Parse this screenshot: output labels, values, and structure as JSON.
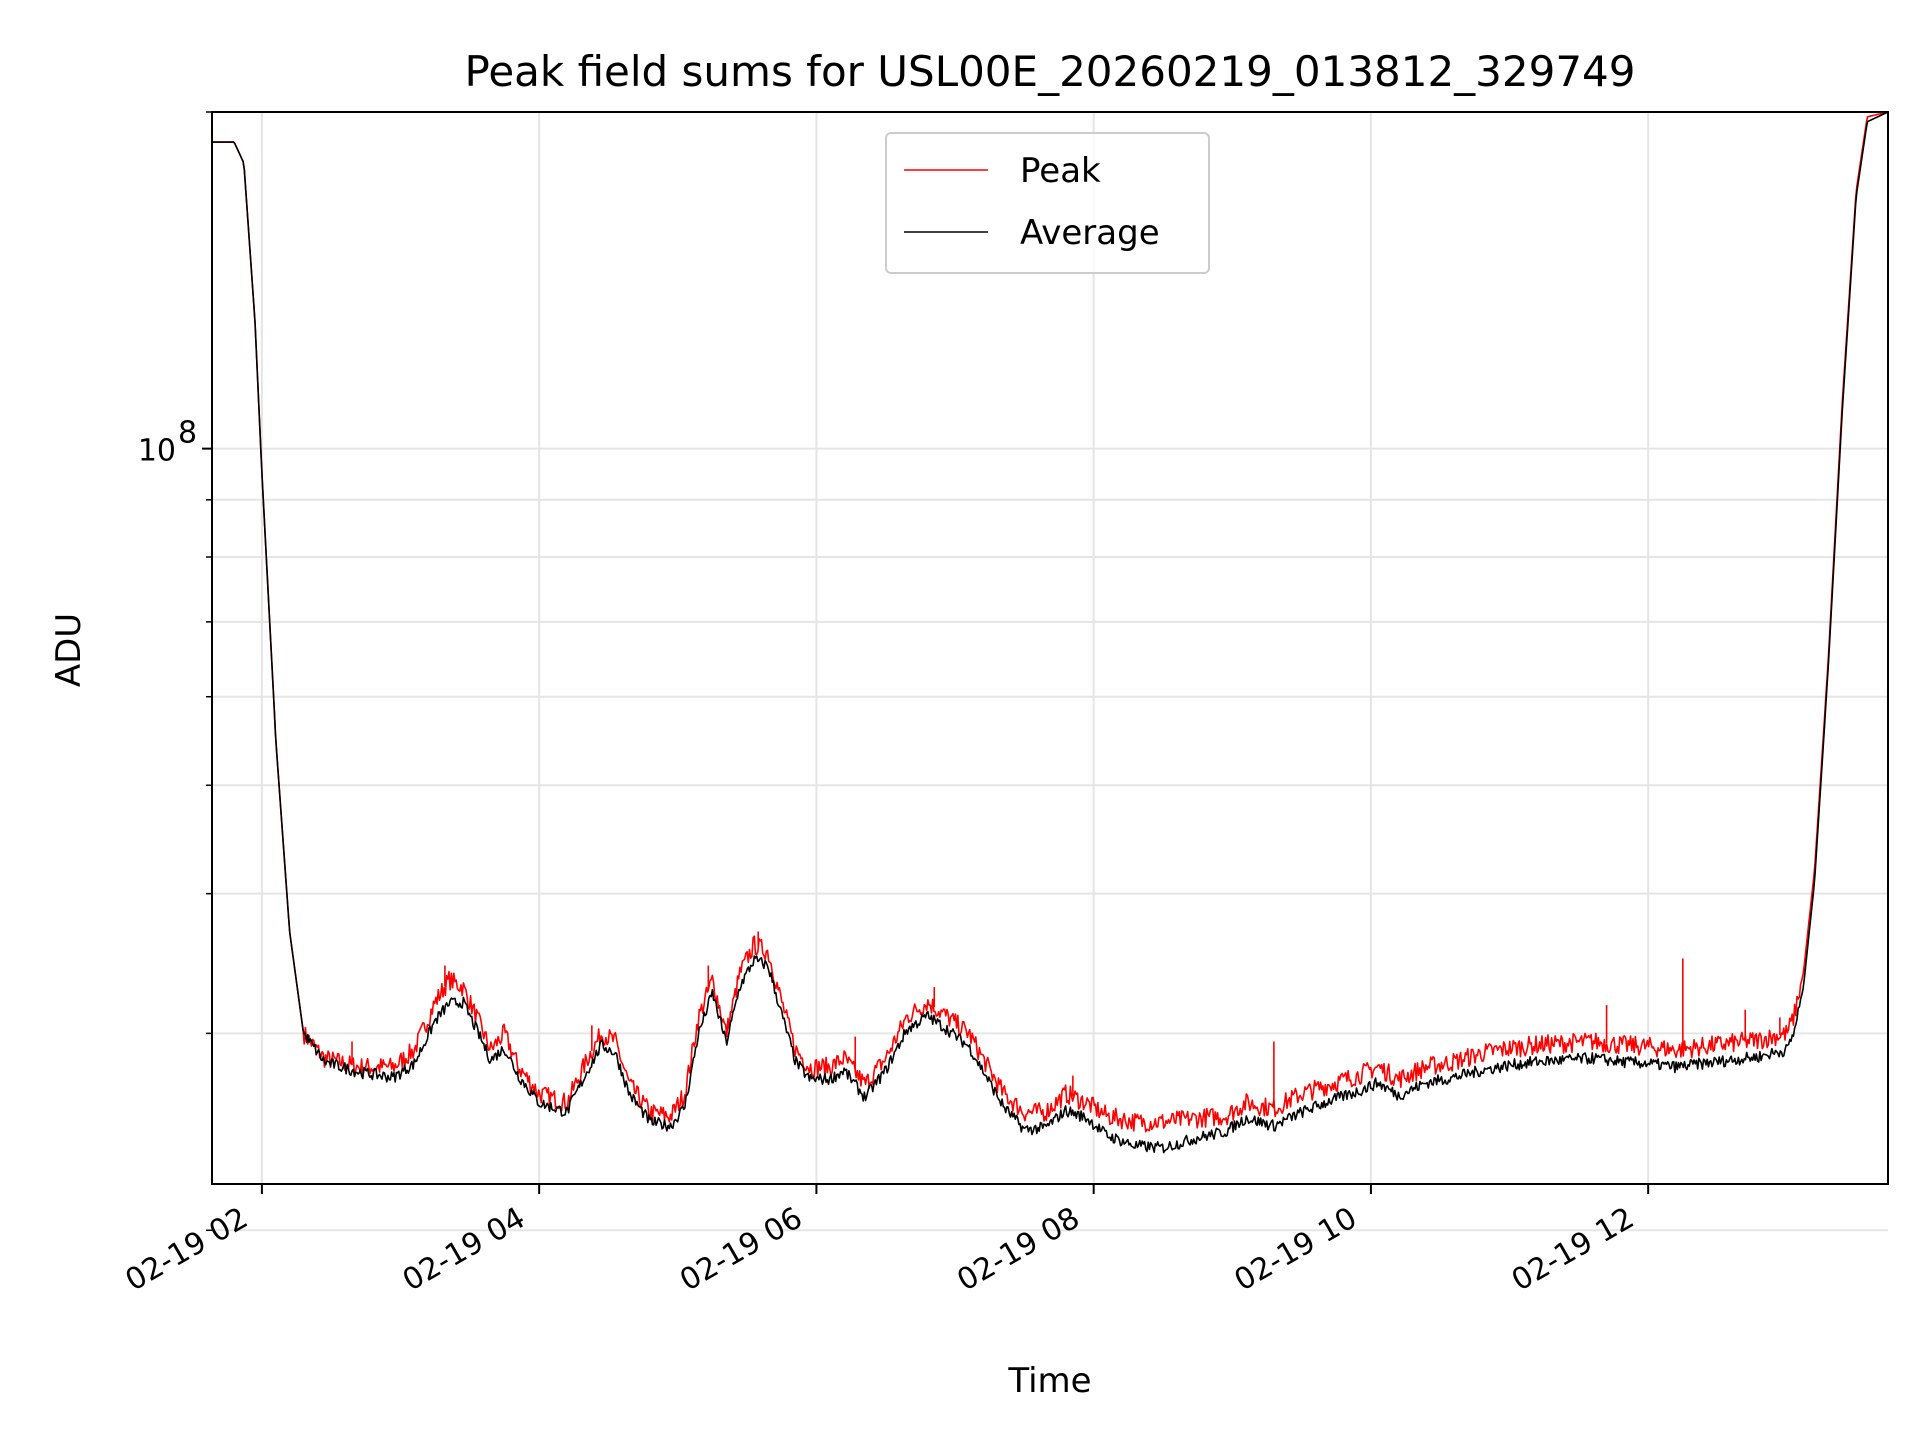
{
  "chart_data": {
    "type": "line",
    "title": "Peak field sums for USL00E_20260219_013812_329749",
    "xlabel": "Time",
    "ylabel": "ADU",
    "yscale": "log",
    "xlim": [
      1.64,
      13.73
    ],
    "ylim": [
      22000000,
      200000000
    ],
    "x_ticks": [
      {
        "value": 2,
        "label": "02-19 02"
      },
      {
        "value": 4,
        "label": "02-19 04"
      },
      {
        "value": 6,
        "label": "02-19 06"
      },
      {
        "value": 8,
        "label": "02-19 08"
      },
      {
        "value": 10,
        "label": "02-19 10"
      },
      {
        "value": 12,
        "label": "02-19 12"
      }
    ],
    "y_major_ticks": [
      {
        "value": 100000000,
        "base": "10",
        "exp": "8"
      }
    ],
    "y_minor_ticks": [
      20000000,
      30000000,
      40000000,
      50000000,
      60000000,
      70000000,
      80000000,
      90000000,
      200000000
    ],
    "grid": true,
    "legend_position": "top-center",
    "series": [
      {
        "name": "Peak",
        "color": "#ff0000",
        "points": [
          [
            1.64,
            188000000
          ],
          [
            1.8,
            188000000
          ],
          [
            1.87,
            180000000
          ],
          [
            1.95,
            130000000
          ],
          [
            2.0,
            95000000
          ],
          [
            2.1,
            55000000
          ],
          [
            2.2,
            37000000
          ],
          [
            2.3,
            30000000
          ],
          [
            2.45,
            28500000
          ],
          [
            2.7,
            28000000
          ],
          [
            2.95,
            28000000
          ],
          [
            3.1,
            29000000
          ],
          [
            3.25,
            32000000
          ],
          [
            3.35,
            33500000
          ],
          [
            3.45,
            33000000
          ],
          [
            3.55,
            31000000
          ],
          [
            3.65,
            29000000
          ],
          [
            3.75,
            30000000
          ],
          [
            3.85,
            28000000
          ],
          [
            4.0,
            26500000
          ],
          [
            4.2,
            26000000
          ],
          [
            4.35,
            28500000
          ],
          [
            4.45,
            30000000
          ],
          [
            4.55,
            29500000
          ],
          [
            4.65,
            27000000
          ],
          [
            4.8,
            25500000
          ],
          [
            4.95,
            25300000
          ],
          [
            5.05,
            26500000
          ],
          [
            5.15,
            31000000
          ],
          [
            5.25,
            33500000
          ],
          [
            5.35,
            30000000
          ],
          [
            5.45,
            34000000
          ],
          [
            5.55,
            36000000
          ],
          [
            5.65,
            35500000
          ],
          [
            5.75,
            32000000
          ],
          [
            5.85,
            29000000
          ],
          [
            5.95,
            28000000
          ],
          [
            6.1,
            28000000
          ],
          [
            6.2,
            28500000
          ],
          [
            6.35,
            27000000
          ],
          [
            6.5,
            28500000
          ],
          [
            6.65,
            31000000
          ],
          [
            6.8,
            32000000
          ],
          [
            6.95,
            31000000
          ],
          [
            7.1,
            30000000
          ],
          [
            7.2,
            28500000
          ],
          [
            7.35,
            26500000
          ],
          [
            7.5,
            25500000
          ],
          [
            7.65,
            25500000
          ],
          [
            7.8,
            26500000
          ],
          [
            7.95,
            26000000
          ],
          [
            8.1,
            25300000
          ],
          [
            8.3,
            25000000
          ],
          [
            8.5,
            25000000
          ],
          [
            8.75,
            25200000
          ],
          [
            8.95,
            25300000
          ],
          [
            9.1,
            26000000
          ],
          [
            9.3,
            25700000
          ],
          [
            9.5,
            26500000
          ],
          [
            9.7,
            27000000
          ],
          [
            9.9,
            27500000
          ],
          [
            10.05,
            28000000
          ],
          [
            10.2,
            27300000
          ],
          [
            10.4,
            28000000
          ],
          [
            10.6,
            28300000
          ],
          [
            10.8,
            28800000
          ],
          [
            11.0,
            29100000
          ],
          [
            11.2,
            29300000
          ],
          [
            11.4,
            29400000
          ],
          [
            11.6,
            29500000
          ],
          [
            11.8,
            29300000
          ],
          [
            12.0,
            29200000
          ],
          [
            12.2,
            29000000
          ],
          [
            12.4,
            29200000
          ],
          [
            12.6,
            29400000
          ],
          [
            12.8,
            29600000
          ],
          [
            13.0,
            30000000
          ],
          [
            13.05,
            31000000
          ],
          [
            13.12,
            34000000
          ],
          [
            13.2,
            42000000
          ],
          [
            13.3,
            65000000
          ],
          [
            13.4,
            110000000
          ],
          [
            13.5,
            170000000
          ],
          [
            13.58,
            198000000
          ],
          [
            13.73,
            200000000
          ]
        ]
      },
      {
        "name": "Average",
        "color": "#000000",
        "points": [
          [
            1.64,
            188000000
          ],
          [
            1.8,
            188000000
          ],
          [
            1.87,
            180000000
          ],
          [
            1.95,
            130000000
          ],
          [
            2.0,
            95000000
          ],
          [
            2.1,
            55000000
          ],
          [
            2.2,
            37000000
          ],
          [
            2.3,
            30000000
          ],
          [
            2.45,
            28300000
          ],
          [
            2.7,
            27700000
          ],
          [
            2.95,
            27400000
          ],
          [
            3.1,
            28200000
          ],
          [
            3.25,
            30800000
          ],
          [
            3.35,
            31900000
          ],
          [
            3.45,
            32000000
          ],
          [
            3.55,
            30200000
          ],
          [
            3.65,
            28400000
          ],
          [
            3.75,
            29100000
          ],
          [
            3.85,
            27500000
          ],
          [
            4.0,
            26000000
          ],
          [
            4.2,
            25500000
          ],
          [
            4.35,
            27800000
          ],
          [
            4.45,
            29300000
          ],
          [
            4.55,
            28800000
          ],
          [
            4.65,
            26500000
          ],
          [
            4.8,
            25000000
          ],
          [
            4.95,
            24800000
          ],
          [
            5.05,
            25800000
          ],
          [
            5.15,
            30000000
          ],
          [
            5.25,
            32600000
          ],
          [
            5.35,
            29400000
          ],
          [
            5.45,
            33100000
          ],
          [
            5.55,
            34900000
          ],
          [
            5.65,
            34500000
          ],
          [
            5.75,
            31200000
          ],
          [
            5.85,
            28300000
          ],
          [
            5.95,
            27300000
          ],
          [
            6.1,
            27300000
          ],
          [
            6.2,
            27800000
          ],
          [
            6.35,
            26300000
          ],
          [
            6.5,
            27800000
          ],
          [
            6.65,
            30200000
          ],
          [
            6.8,
            31100000
          ],
          [
            6.95,
            30200000
          ],
          [
            7.1,
            29200000
          ],
          [
            7.2,
            27800000
          ],
          [
            7.35,
            25800000
          ],
          [
            7.5,
            24600000
          ],
          [
            7.65,
            24700000
          ],
          [
            7.8,
            25600000
          ],
          [
            7.95,
            25200000
          ],
          [
            8.1,
            24300000
          ],
          [
            8.3,
            23800000
          ],
          [
            8.5,
            23700000
          ],
          [
            8.75,
            24200000
          ],
          [
            8.95,
            24500000
          ],
          [
            9.1,
            25200000
          ],
          [
            9.3,
            24800000
          ],
          [
            9.5,
            25500000
          ],
          [
            9.7,
            26100000
          ],
          [
            9.9,
            26600000
          ],
          [
            10.05,
            27100000
          ],
          [
            10.2,
            26400000
          ],
          [
            10.4,
            27100000
          ],
          [
            10.6,
            27400000
          ],
          [
            10.8,
            27800000
          ],
          [
            11.0,
            28100000
          ],
          [
            11.2,
            28300000
          ],
          [
            11.4,
            28400000
          ],
          [
            11.6,
            28500000
          ],
          [
            11.8,
            28300000
          ],
          [
            12.0,
            28200000
          ],
          [
            12.2,
            28000000
          ],
          [
            12.4,
            28200000
          ],
          [
            12.6,
            28400000
          ],
          [
            12.8,
            28600000
          ],
          [
            13.0,
            29000000
          ],
          [
            13.05,
            30000000
          ],
          [
            13.12,
            33000000
          ],
          [
            13.2,
            41000000
          ],
          [
            13.3,
            64000000
          ],
          [
            13.4,
            108000000
          ],
          [
            13.5,
            168000000
          ],
          [
            13.58,
            196000000
          ],
          [
            13.73,
            200000000
          ]
        ]
      }
    ],
    "peak_spikes": [
      [
        2.65,
        29500000
      ],
      [
        3.32,
        34500000
      ],
      [
        4.38,
        30500000
      ],
      [
        5.22,
        34500000
      ],
      [
        5.58,
        37000000
      ],
      [
        6.28,
        29800000
      ],
      [
        6.85,
        33000000
      ],
      [
        7.85,
        27500000
      ],
      [
        9.3,
        29500000
      ],
      [
        11.7,
        31800000
      ],
      [
        12.25,
        35000000
      ],
      [
        12.7,
        31500000
      ],
      [
        12.95,
        31000000
      ]
    ]
  }
}
